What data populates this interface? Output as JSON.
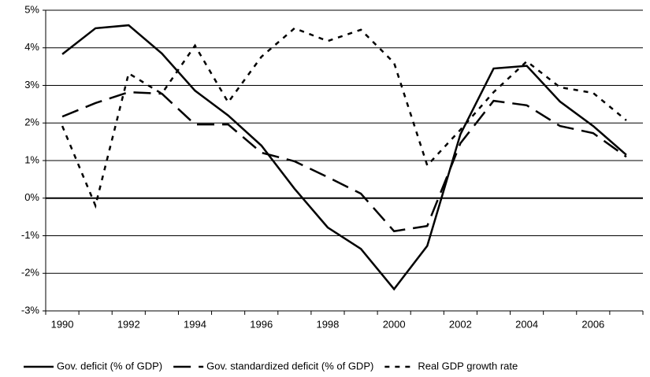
{
  "chart_data": {
    "type": "line",
    "categories": [
      "1990",
      null,
      "1992",
      null,
      "1994",
      null,
      "1996",
      null,
      "1998",
      null,
      "2000",
      null,
      "2002",
      null,
      "2004",
      null,
      "2006",
      null
    ],
    "series": [
      {
        "name": "Gov. deficit (% of GDP)",
        "color": "#000000",
        "line_style": "solid",
        "values": [
          3.83,
          4.52,
          4.6,
          3.85,
          2.86,
          2.2,
          1.4,
          0.25,
          -0.78,
          -1.35,
          -2.42,
          -1.27,
          1.7,
          3.45,
          3.52,
          2.57,
          1.92,
          1.15
        ]
      },
      {
        "name": "Gov. standardized deficit (% of GDP)",
        "color": "#000000",
        "line_style": "long-dash",
        "values": [
          2.17,
          2.53,
          2.82,
          2.78,
          1.96,
          1.96,
          1.21,
          0.98,
          0.56,
          0.12,
          -0.88,
          -0.74,
          1.46,
          2.59,
          2.47,
          1.92,
          1.73,
          1.1
        ]
      },
      {
        "name": "Real GDP growth rate",
        "color": "#000000",
        "line_style": "short-dash",
        "values": [
          1.92,
          -0.2,
          3.32,
          2.78,
          4.06,
          2.55,
          3.76,
          4.52,
          4.18,
          4.48,
          3.6,
          0.87,
          1.82,
          2.82,
          3.64,
          2.95,
          2.8,
          2.07
        ]
      }
    ],
    "ylim": [
      -3,
      5
    ],
    "yticks": [
      {
        "value": -3,
        "label": "-3%"
      },
      {
        "value": -2,
        "label": "-2%"
      },
      {
        "value": -1,
        "label": "-1%"
      },
      {
        "value": 0,
        "label": "0%"
      },
      {
        "value": 1,
        "label": "1%"
      },
      {
        "value": 2,
        "label": "2%"
      },
      {
        "value": 3,
        "label": "3%"
      },
      {
        "value": 4,
        "label": "4%"
      },
      {
        "value": 5,
        "label": "5%"
      }
    ],
    "grid": true,
    "legend": "bottom"
  }
}
